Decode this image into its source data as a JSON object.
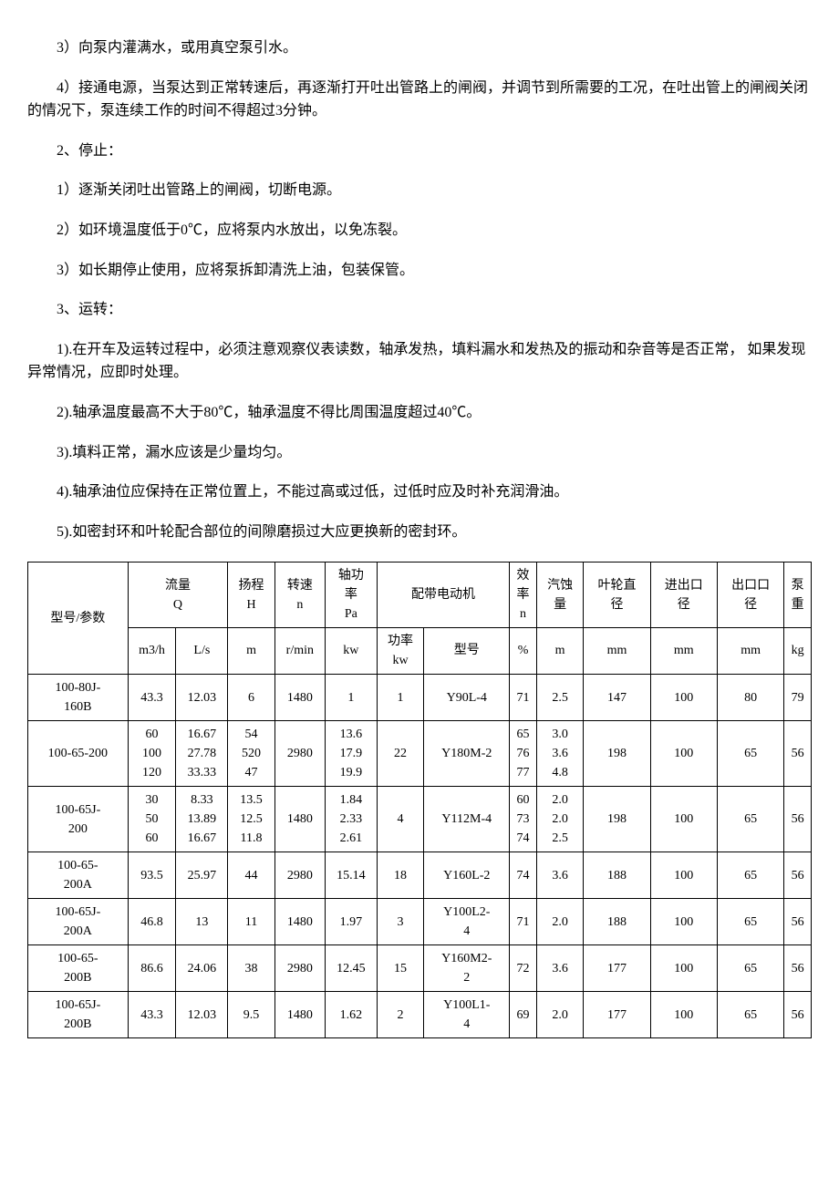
{
  "paragraphs": {
    "p1": "3）向泵内灌满水，或用真空泵引水。",
    "p2": "4）接通电源，当泵达到正常转速后，再逐渐打开吐出管路上的闸阀，并调节到所需要的工况，在吐出管上的闸阀关闭的情况下，泵连续工作的时间不得超过3分钟。",
    "p3": "2、停止：",
    "p4": "1）逐渐关闭吐出管路上的闸阀，切断电源。",
    "p5": "2）如环境温度低于0℃，应将泵内水放出，以免冻裂。",
    "p6": "3）如长期停止使用，应将泵拆卸清洗上油，包装保管。",
    "p7": "3、运转：",
    "p8": "1).在开车及运转过程中，必须注意观察仪表读数，轴承发热，填料漏水和发热及的振动和杂音等是否正常， 如果发现异常情况，应即时处理。",
    "p9": "2).轴承温度最高不大于80℃，轴承温度不得比周围温度超过40℃。",
    "p10": "3).填料正常，漏水应该是少量均匀。",
    "p11": "4).轴承油位应保持在正常位置上，不能过高或过低，过低时应及时补充润滑油。",
    "p12": "5).如密封环和叶轮配合部位的间隙磨损过大应更换新的密封环。"
  },
  "table": {
    "headers": {
      "h1": "型号/参数",
      "h2": "流量\nQ",
      "h3": "扬程\nH",
      "h4": "转速\nn",
      "h5": "轴功\n率\nPa",
      "h6": "配带电动机",
      "h7": "效\n率\nn",
      "h8": "汽蚀\n量",
      "h9": "叶轮直\n径",
      "h10": "进出口\n径",
      "h11": "出口口\n径",
      "h12": "泵\n重"
    },
    "units": {
      "u1": "m3/h",
      "u2": "L/s",
      "u3": "m",
      "u4": "r/min",
      "u5": "kw",
      "u6": "功率\nkw",
      "u7": "型号",
      "u8": "%",
      "u9": "m",
      "u10": "mm",
      "u11": "mm",
      "u12": "mm",
      "u13": "kg"
    },
    "rows": [
      {
        "model": "100-80J-\n160B",
        "m3h": "43.3",
        "ls": "12.03",
        "h": "6",
        "n": "1480",
        "pa": "1",
        "kw": "1",
        "motor": "Y90L-4",
        "eff": "71",
        "cav": "2.5",
        "dia": "147",
        "inlet": "100",
        "outlet": "80",
        "weight": "79"
      },
      {
        "model": "100-65-200",
        "m3h": "60\n100\n120",
        "ls": "16.67\n27.78\n33.33",
        "h": "54\n520\n47",
        "n": "2980",
        "pa": "13.6\n17.9\n19.9",
        "kw": "22",
        "motor": "Y180M-2",
        "eff": "65\n76\n77",
        "cav": "3.0\n3.6\n4.8",
        "dia": "198",
        "inlet": "100",
        "outlet": "65",
        "weight": "56"
      },
      {
        "model": "100-65J-\n200",
        "m3h": "30\n50\n60",
        "ls": "8.33\n13.89\n16.67",
        "h": "13.5\n12.5\n11.8",
        "n": "1480",
        "pa": "1.84\n2.33\n2.61",
        "kw": "4",
        "motor": "Y112M-4",
        "eff": "60\n73\n74",
        "cav": "2.0\n2.0\n2.5",
        "dia": "198",
        "inlet": "100",
        "outlet": "65",
        "weight": "56"
      },
      {
        "model": "100-65-\n200A",
        "m3h": "93.5",
        "ls": "25.97",
        "h": "44",
        "n": "2980",
        "pa": "15.14",
        "kw": "18",
        "motor": "Y160L-2",
        "eff": "74",
        "cav": "3.6",
        "dia": "188",
        "inlet": "100",
        "outlet": "65",
        "weight": "56"
      },
      {
        "model": "100-65J-\n200A",
        "m3h": "46.8",
        "ls": "13",
        "h": "11",
        "n": "1480",
        "pa": "1.97",
        "kw": "3",
        "motor": "Y100L2-\n4",
        "eff": "71",
        "cav": "2.0",
        "dia": "188",
        "inlet": "100",
        "outlet": "65",
        "weight": "56"
      },
      {
        "model": "100-65-\n200B",
        "m3h": "86.6",
        "ls": "24.06",
        "h": "38",
        "n": "2980",
        "pa": "12.45",
        "kw": "15",
        "motor": "Y160M2-\n2",
        "eff": "72",
        "cav": "3.6",
        "dia": "177",
        "inlet": "100",
        "outlet": "65",
        "weight": "56"
      },
      {
        "model": "100-65J-\n200B",
        "m3h": "43.3",
        "ls": "12.03",
        "h": "9.5",
        "n": "1480",
        "pa": "1.62",
        "kw": "2",
        "motor": "Y100L1-\n4",
        "eff": "69",
        "cav": "2.0",
        "dia": "177",
        "inlet": "100",
        "outlet": "65",
        "weight": "56"
      }
    ]
  }
}
